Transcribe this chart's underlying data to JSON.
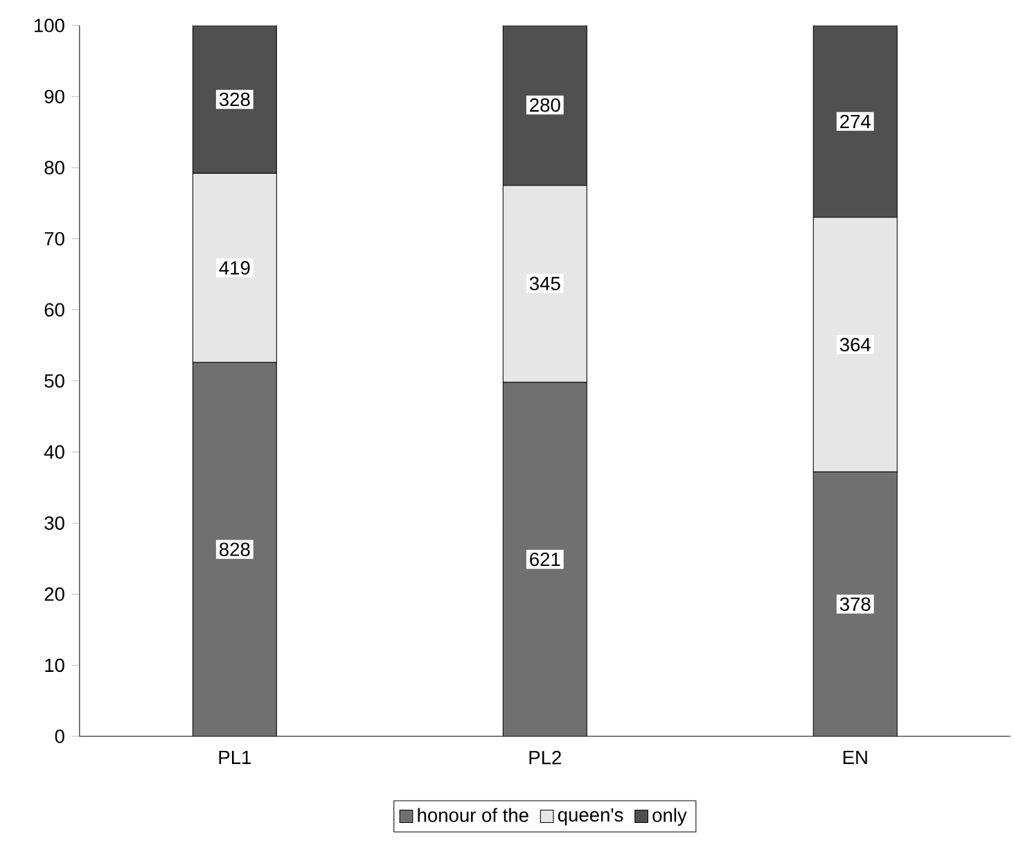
{
  "chart_data": {
    "type": "bar",
    "stacked": true,
    "categories": [
      "PL1",
      "PL2",
      "EN"
    ],
    "ylim": [
      0,
      100
    ],
    "yticks": [
      0,
      10,
      20,
      30,
      40,
      50,
      60,
      70,
      80,
      90,
      100
    ],
    "legend": "bottom",
    "series": [
      {
        "name": "honour of the",
        "color": "#707070",
        "values": [
          52.6,
          49.8,
          37.2
        ]
      },
      {
        "name": "queen's",
        "color": "#e6e6e6",
        "values": [
          26.6,
          27.7,
          35.8
        ]
      },
      {
        "name": "only",
        "color": "#505050",
        "values": [
          20.8,
          22.5,
          27.0
        ]
      }
    ],
    "annotations": [
      {
        "text": "828",
        "x": "PL1",
        "y": 26.3
      },
      {
        "text": "621",
        "x": "PL2",
        "y": 24.9
      },
      {
        "text": "378",
        "x": "EN",
        "y": 18.6
      },
      {
        "text": "419",
        "x": "PL1",
        "y": 65.9
      },
      {
        "text": "345",
        "x": "PL2",
        "y": 63.7
      },
      {
        "text": "364",
        "x": "EN",
        "y": 55.1
      },
      {
        "text": "328",
        "x": "PL1",
        "y": 89.6
      },
      {
        "text": "280",
        "x": "PL2",
        "y": 88.8
      },
      {
        "text": "274",
        "x": "EN",
        "y": 86.5
      }
    ]
  }
}
